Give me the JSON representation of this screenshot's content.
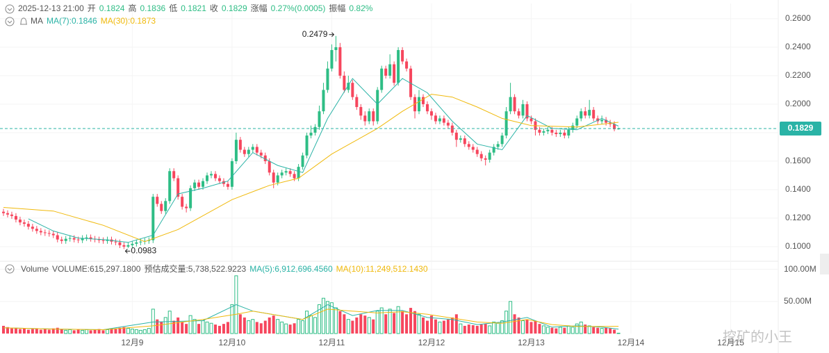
{
  "chart_data": {
    "type": "candlestick",
    "header": {
      "datetime": "2025-12-13 21:00",
      "open_label": "开",
      "high_label": "高",
      "low_label": "低",
      "close_label": "收",
      "change_label": "涨幅",
      "change": "0.27%(0.0005)",
      "amplitude_label": "振幅",
      "amplitude": "0.82%"
    },
    "ma_legend": {
      "title": "MA",
      "items": [
        "MA(7):0.1846",
        "MA(30):0.1873"
      ]
    },
    "volume_legend": {
      "title": "Volume",
      "items": [
        "VOLUME:615,297.1800",
        "预估成交量:5,738,522.9223",
        "MA(5):6,912,696.4560",
        "MA(10):11,249,512.1430"
      ]
    },
    "watermark": "挖矿的小王",
    "up_color": "#2ebd85",
    "down_color": "#f6465d",
    "last_price_color": "#2ab3a6",
    "grid": true,
    "x": [
      0,
      1,
      2,
      3,
      4,
      5,
      6,
      7,
      8,
      9,
      10,
      11,
      12,
      13,
      14,
      15,
      16,
      17,
      18,
      19,
      20,
      21,
      22,
      23,
      24,
      25,
      26,
      27,
      28,
      29,
      30,
      31,
      32,
      33,
      34,
      35,
      36,
      37,
      38,
      39,
      40,
      41,
      42,
      43,
      44,
      45,
      46,
      47,
      48,
      49,
      50,
      51,
      52,
      53,
      54,
      55,
      56,
      57,
      58,
      59,
      60,
      61,
      62,
      63,
      64,
      65,
      66,
      67,
      68,
      69,
      70,
      71,
      72,
      73,
      74,
      75,
      76,
      77,
      78,
      79,
      80,
      81,
      82,
      83,
      84,
      85,
      86,
      87,
      88,
      89,
      90,
      91,
      92,
      93,
      94,
      95,
      96,
      97,
      98,
      99,
      100,
      101,
      102,
      103,
      104,
      105,
      106,
      107,
      108,
      109,
      110,
      111,
      112,
      113,
      114,
      115,
      116,
      117,
      118,
      119,
      120,
      121,
      122,
      123,
      124,
      125,
      126,
      127,
      128,
      129,
      130,
      131,
      132,
      133,
      134,
      135,
      136,
      137,
      138,
      139,
      140,
      141,
      142,
      143,
      144,
      145,
      146,
      147,
      148
    ],
    "candles": {
      "open": [
        0.1245,
        0.1235,
        0.1225,
        0.1215,
        0.119,
        0.117,
        0.116,
        0.114,
        0.1125,
        0.111,
        0.11,
        0.1095,
        0.109,
        0.108,
        0.105,
        0.104,
        0.1055,
        0.106,
        0.105,
        0.1045,
        0.106,
        0.1065,
        0.1055,
        0.105,
        0.1045,
        0.104,
        0.105,
        0.1035,
        0.103,
        0.101,
        0.1,
        0.101,
        0.102,
        0.103,
        0.1035,
        0.104,
        0.1045,
        0.135,
        0.13,
        0.125,
        0.132,
        0.153,
        0.148,
        0.135,
        0.128,
        0.127,
        0.141,
        0.145,
        0.142,
        0.146,
        0.15,
        0.151,
        0.148,
        0.146,
        0.144,
        0.142,
        0.16,
        0.175,
        0.168,
        0.165,
        0.168,
        0.17,
        0.166,
        0.164,
        0.16,
        0.152,
        0.145,
        0.15,
        0.152,
        0.153,
        0.151,
        0.148,
        0.156,
        0.164,
        0.178,
        0.18,
        0.184,
        0.195,
        0.21,
        0.225,
        0.238,
        0.24,
        0.22,
        0.21,
        0.215,
        0.205,
        0.198,
        0.192,
        0.188,
        0.195,
        0.188,
        0.21,
        0.225,
        0.22,
        0.228,
        0.215,
        0.238,
        0.23,
        0.225,
        0.205,
        0.195,
        0.205,
        0.2,
        0.195,
        0.192,
        0.188,
        0.19,
        0.187,
        0.185,
        0.18,
        0.175,
        0.176,
        0.172,
        0.17,
        0.168,
        0.165,
        0.162,
        0.161,
        0.166,
        0.17,
        0.172,
        0.178,
        0.195,
        0.205,
        0.195,
        0.192,
        0.2,
        0.19,
        0.188,
        0.182,
        0.18,
        0.181,
        0.182,
        0.18,
        0.179,
        0.18,
        0.178,
        0.182,
        0.185,
        0.19,
        0.195,
        0.192,
        0.196,
        0.19,
        0.188,
        0.189,
        0.187,
        0.186,
        0.1824
      ],
      "high": [
        0.1265,
        0.1255,
        0.1245,
        0.1235,
        0.121,
        0.119,
        0.118,
        0.116,
        0.1145,
        0.113,
        0.112,
        0.1115,
        0.111,
        0.11,
        0.107,
        0.1075,
        0.108,
        0.108,
        0.107,
        0.108,
        0.1085,
        0.1085,
        0.1075,
        0.107,
        0.1065,
        0.107,
        0.107,
        0.1055,
        0.105,
        0.103,
        0.103,
        0.104,
        0.105,
        0.1055,
        0.106,
        0.1065,
        0.137,
        0.137,
        0.132,
        0.134,
        0.155,
        0.155,
        0.15,
        0.137,
        0.13,
        0.143,
        0.147,
        0.147,
        0.148,
        0.152,
        0.153,
        0.153,
        0.15,
        0.148,
        0.146,
        0.162,
        0.18,
        0.177,
        0.17,
        0.17,
        0.172,
        0.172,
        0.168,
        0.166,
        0.162,
        0.154,
        0.152,
        0.154,
        0.155,
        0.155,
        0.153,
        0.158,
        0.166,
        0.18,
        0.185,
        0.186,
        0.199,
        0.215,
        0.23,
        0.242,
        0.2479,
        0.243,
        0.223,
        0.22,
        0.217,
        0.207,
        0.2,
        0.195,
        0.197,
        0.197,
        0.212,
        0.227,
        0.227,
        0.235,
        0.23,
        0.24,
        0.24,
        0.232,
        0.227,
        0.207,
        0.21,
        0.207,
        0.202,
        0.197,
        0.194,
        0.192,
        0.192,
        0.189,
        0.187,
        0.182,
        0.178,
        0.178,
        0.174,
        0.172,
        0.17,
        0.167,
        0.164,
        0.168,
        0.172,
        0.174,
        0.18,
        0.198,
        0.215,
        0.207,
        0.197,
        0.203,
        0.202,
        0.192,
        0.19,
        0.184,
        0.183,
        0.184,
        0.184,
        0.182,
        0.182,
        0.182,
        0.184,
        0.187,
        0.192,
        0.197,
        0.198,
        0.203,
        0.198,
        0.192,
        0.192,
        0.191,
        0.189,
        0.188,
        0.1836
      ],
      "low": [
        0.1215,
        0.1205,
        0.1195,
        0.117,
        0.115,
        0.114,
        0.112,
        0.1105,
        0.109,
        0.108,
        0.1075,
        0.107,
        0.106,
        0.103,
        0.102,
        0.102,
        0.1035,
        0.103,
        0.1025,
        0.1025,
        0.104,
        0.1035,
        0.103,
        0.1025,
        0.102,
        0.102,
        0.1015,
        0.101,
        0.099,
        0.0983,
        0.099,
        0.099,
        0.1,
        0.101,
        0.1015,
        0.102,
        0.1025,
        0.128,
        0.123,
        0.123,
        0.13,
        0.146,
        0.133,
        0.126,
        0.124,
        0.125,
        0.139,
        0.14,
        0.14,
        0.144,
        0.148,
        0.146,
        0.144,
        0.142,
        0.14,
        0.14,
        0.158,
        0.166,
        0.163,
        0.163,
        0.166,
        0.164,
        0.162,
        0.158,
        0.15,
        0.141,
        0.143,
        0.148,
        0.15,
        0.149,
        0.146,
        0.146,
        0.154,
        0.162,
        0.176,
        0.178,
        0.182,
        0.193,
        0.208,
        0.223,
        0.23,
        0.218,
        0.208,
        0.208,
        0.203,
        0.196,
        0.189,
        0.185,
        0.186,
        0.185,
        0.186,
        0.208,
        0.218,
        0.218,
        0.213,
        0.213,
        0.228,
        0.223,
        0.203,
        0.19,
        0.193,
        0.198,
        0.193,
        0.189,
        0.186,
        0.186,
        0.185,
        0.183,
        0.178,
        0.17,
        0.173,
        0.17,
        0.168,
        0.166,
        0.163,
        0.16,
        0.157,
        0.159,
        0.164,
        0.168,
        0.17,
        0.176,
        0.193,
        0.193,
        0.19,
        0.19,
        0.188,
        0.186,
        0.178,
        0.178,
        0.178,
        0.179,
        0.178,
        0.177,
        0.177,
        0.176,
        0.176,
        0.18,
        0.183,
        0.188,
        0.19,
        0.19,
        0.188,
        0.186,
        0.186,
        0.185,
        0.184,
        0.181,
        0.1821
      ],
      "close": [
        0.1235,
        0.1225,
        0.1215,
        0.119,
        0.117,
        0.116,
        0.114,
        0.1125,
        0.111,
        0.11,
        0.1095,
        0.109,
        0.108,
        0.105,
        0.104,
        0.1055,
        0.106,
        0.105,
        0.1045,
        0.106,
        0.1065,
        0.1055,
        0.105,
        0.1045,
        0.104,
        0.105,
        0.1035,
        0.103,
        0.101,
        0.1,
        0.101,
        0.102,
        0.103,
        0.1035,
        0.104,
        0.1045,
        0.135,
        0.13,
        0.125,
        0.132,
        0.153,
        0.148,
        0.135,
        0.128,
        0.127,
        0.141,
        0.145,
        0.142,
        0.146,
        0.15,
        0.151,
        0.148,
        0.146,
        0.144,
        0.142,
        0.16,
        0.175,
        0.168,
        0.165,
        0.168,
        0.17,
        0.166,
        0.164,
        0.16,
        0.152,
        0.145,
        0.15,
        0.152,
        0.153,
        0.151,
        0.148,
        0.156,
        0.164,
        0.178,
        0.18,
        0.184,
        0.195,
        0.21,
        0.225,
        0.238,
        0.24,
        0.22,
        0.21,
        0.215,
        0.205,
        0.198,
        0.192,
        0.188,
        0.195,
        0.188,
        0.21,
        0.225,
        0.22,
        0.228,
        0.215,
        0.238,
        0.23,
        0.225,
        0.205,
        0.195,
        0.205,
        0.2,
        0.195,
        0.192,
        0.188,
        0.19,
        0.187,
        0.185,
        0.18,
        0.175,
        0.176,
        0.172,
        0.17,
        0.168,
        0.165,
        0.162,
        0.161,
        0.166,
        0.17,
        0.172,
        0.178,
        0.195,
        0.205,
        0.195,
        0.192,
        0.2,
        0.19,
        0.188,
        0.182,
        0.18,
        0.181,
        0.182,
        0.18,
        0.179,
        0.18,
        0.178,
        0.182,
        0.185,
        0.19,
        0.195,
        0.192,
        0.196,
        0.19,
        0.188,
        0.189,
        0.187,
        0.186,
        0.1824,
        0.1829
      ]
    },
    "ma_lines": [
      {
        "color": "#2ab3a6",
        "x": [
          6,
          12,
          18,
          24,
          30,
          36,
          42,
          48,
          54,
          60,
          66,
          72,
          78,
          84,
          90,
          96,
          102,
          108,
          114,
          120,
          126,
          132,
          138,
          144,
          148
        ],
        "values": [
          0.1195,
          0.111,
          0.106,
          0.105,
          0.103,
          0.108,
          0.137,
          0.141,
          0.146,
          0.166,
          0.157,
          0.152,
          0.19,
          0.218,
          0.2,
          0.218,
          0.208,
          0.188,
          0.172,
          0.168,
          0.192,
          0.183,
          0.182,
          0.19,
          0.1846
        ]
      },
      {
        "color": "#f0b90b",
        "x": [
          0,
          12,
          24,
          34,
          42,
          55,
          64,
          71,
          79,
          90,
          96,
          103,
          108,
          114,
          120,
          127,
          138,
          148
        ],
        "values": [
          0.1275,
          0.125,
          0.115,
          0.1035,
          0.112,
          0.133,
          0.143,
          0.148,
          0.165,
          0.183,
          0.195,
          0.207,
          0.205,
          0.198,
          0.19,
          0.185,
          0.184,
          0.1873
        ]
      }
    ],
    "xlim": [
      -0.836,
      186.45
    ],
    "xticks": [
      {
        "value": 31,
        "label": "12月9"
      },
      {
        "value": 55,
        "label": "12月10"
      },
      {
        "value": 79,
        "label": "12月11"
      },
      {
        "value": 103,
        "label": "12月12"
      },
      {
        "value": 127,
        "label": "12月13"
      },
      {
        "value": 151,
        "label": "12月14"
      },
      {
        "value": 175,
        "label": "12月15"
      }
    ],
    "ylim": [
      0.0902,
      0.2707
    ],
    "yticks": [
      {
        "value": 0.26,
        "label": "0.2600"
      },
      {
        "value": 0.24,
        "label": "0.2400"
      },
      {
        "value": 0.22,
        "label": "0.2200"
      },
      {
        "value": 0.2,
        "label": "0.2000"
      },
      {
        "value": 0.18,
        "label": "0.1800"
      },
      {
        "value": 0.16,
        "label": "0.1600"
      },
      {
        "value": 0.14,
        "label": "0.1400"
      },
      {
        "value": 0.12,
        "label": "0.1200"
      },
      {
        "value": 0.1,
        "label": "0.1000"
      }
    ],
    "volume": {
      "values": [
        12000000,
        10000000,
        8000000,
        9000000,
        7000000,
        8000000,
        6000000,
        7000000,
        8000000,
        6000000,
        7000000,
        6000000,
        8000000,
        9000000,
        7000000,
        5000000,
        6000000,
        5000000,
        6000000,
        5000000,
        6000000,
        5000000,
        6000000,
        7000000,
        5000000,
        6000000,
        8000000,
        7000000,
        9000000,
        10000000,
        8000000,
        7000000,
        6000000,
        5000000,
        6000000,
        8000000,
        38000000,
        22000000,
        18000000,
        25000000,
        35000000,
        20000000,
        25000000,
        18000000,
        15000000,
        28000000,
        22000000,
        15000000,
        20000000,
        18000000,
        16000000,
        14000000,
        12000000,
        15000000,
        18000000,
        45000000,
        90000000,
        30000000,
        25000000,
        20000000,
        22000000,
        18000000,
        16000000,
        20000000,
        25000000,
        28000000,
        22000000,
        18000000,
        15000000,
        14000000,
        16000000,
        22000000,
        20000000,
        35000000,
        28000000,
        25000000,
        45000000,
        55000000,
        50000000,
        48000000,
        40000000,
        35000000,
        30000000,
        22000000,
        20000000,
        25000000,
        30000000,
        28000000,
        25000000,
        22000000,
        35000000,
        40000000,
        30000000,
        38000000,
        32000000,
        42000000,
        35000000,
        30000000,
        40000000,
        35000000,
        30000000,
        25000000,
        20000000,
        28000000,
        22000000,
        18000000,
        20000000,
        22000000,
        25000000,
        30000000,
        15000000,
        12000000,
        14000000,
        13000000,
        12000000,
        14000000,
        15000000,
        12000000,
        18000000,
        16000000,
        20000000,
        35000000,
        50000000,
        30000000,
        25000000,
        20000000,
        22000000,
        18000000,
        20000000,
        15000000,
        12000000,
        10000000,
        9000000,
        8000000,
        10000000,
        9000000,
        12000000,
        10000000,
        15000000,
        18000000,
        14000000,
        12000000,
        10000000,
        9000000,
        8000000,
        9000000,
        8000000,
        6000000,
        615297
      ],
      "ylim": [
        0,
        105000000
      ],
      "yticks": [
        {
          "value": 100000000,
          "label": "100.00M"
        },
        {
          "value": 50000000,
          "label": "50.00M"
        }
      ],
      "ma_lines": [
        {
          "color": "#2ab3a6",
          "x": [
            0,
            12,
            24,
            36,
            48,
            56,
            60,
            72,
            78,
            84,
            90,
            96,
            102,
            108,
            114,
            120,
            126,
            132,
            138,
            144,
            148
          ],
          "values": [
            9000000,
            7000000,
            6000000,
            18000000,
            20000000,
            45000000,
            35000000,
            22000000,
            45000000,
            28000000,
            36000000,
            36000000,
            25000000,
            22000000,
            14000000,
            18000000,
            25000000,
            10000000,
            12000000,
            10000000,
            6912696
          ]
        },
        {
          "color": "#f0b90b",
          "x": [
            0,
            12,
            24,
            36,
            48,
            56,
            60,
            72,
            78,
            84,
            90,
            96,
            102,
            108,
            114,
            120,
            126,
            132,
            138,
            144,
            148
          ],
          "values": [
            9000000,
            7000000,
            6000000,
            12000000,
            22000000,
            30000000,
            35000000,
            22000000,
            38000000,
            35000000,
            32000000,
            34000000,
            30000000,
            24000000,
            18000000,
            16000000,
            22000000,
            14000000,
            11000000,
            11000000,
            11249512
          ]
        }
      ]
    }
  }
}
